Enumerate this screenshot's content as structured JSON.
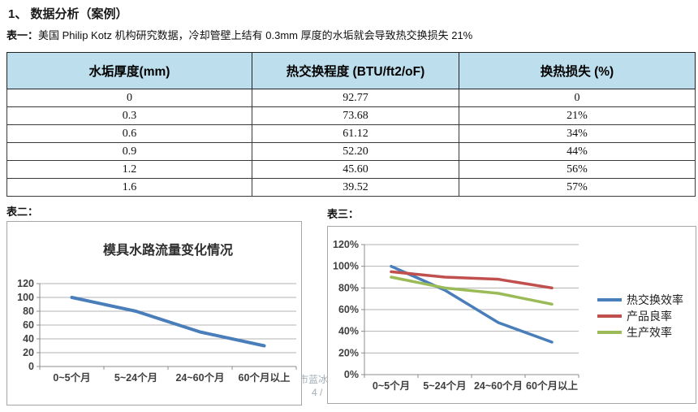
{
  "page": {
    "heading": "1、  数据分析（案例）",
    "table1_label": "表一：",
    "table1_caption": "美国 Philip Kotz 机构研究数据，冷却管壁上结有 0.3mm 厚度的水垢就会导致热交换损失 21%",
    "table2_label": "表二：",
    "table3_label": "表三：",
    "watermark_line1": "市蓝冰环",
    "watermark_line2": "4 /"
  },
  "table1": {
    "header_bg": "#bddeec",
    "headers": [
      "水垢厚度(mm)",
      "热交换程度 (BTU/ft2/oF)",
      "换热损失 (%)"
    ],
    "rows": [
      [
        "0",
        "92.77",
        "0"
      ],
      [
        "0.3",
        "73.68",
        "21%"
      ],
      [
        "0.6",
        "61.12",
        "34%"
      ],
      [
        "0.9",
        "52.20",
        "44%"
      ],
      [
        "1.2",
        "45.60",
        "56%"
      ],
      [
        "1.6",
        "39.52",
        "57%"
      ]
    ]
  },
  "chart_data": [
    {
      "type": "line",
      "title": "模具水路流量变化情况",
      "categories": [
        "0~5个月",
        "5~24个月",
        "24~60个月",
        "60个月以上"
      ],
      "series": [
        {
          "name": "模具水路流量",
          "color": "#4a7ebb",
          "values": [
            100,
            80,
            50,
            30
          ]
        }
      ],
      "ylim": [
        0,
        120
      ],
      "ytick_step": 20,
      "ytick_format": "number",
      "grid": true,
      "legend": false,
      "legend_position": "none"
    },
    {
      "type": "line",
      "title": "",
      "categories": [
        "0~5个月",
        "5~24个月",
        "24~60个月",
        "60个月以上"
      ],
      "series": [
        {
          "name": "热交换效率",
          "color": "#4a7ebb",
          "values": [
            100,
            78,
            48,
            30
          ]
        },
        {
          "name": "产品良率",
          "color": "#c0504d",
          "values": [
            95,
            90,
            88,
            80
          ]
        },
        {
          "name": "生产效率",
          "color": "#9bbb59",
          "values": [
            90,
            80,
            75,
            65
          ]
        }
      ],
      "ylim": [
        0,
        120
      ],
      "ytick_step": 20,
      "ytick_format": "percent",
      "grid": true,
      "legend": true,
      "legend_position": "right"
    }
  ]
}
